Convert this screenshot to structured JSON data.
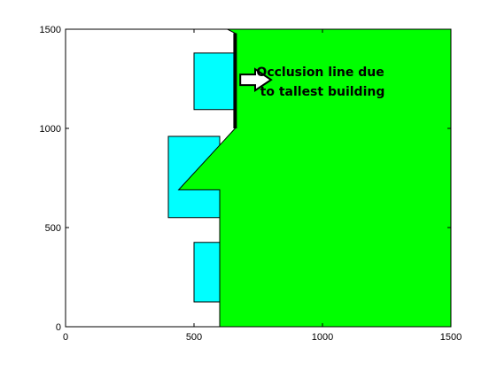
{
  "chart_data": {
    "type": "area",
    "title": "",
    "xlabel": "",
    "ylabel": "",
    "xlim": [
      0,
      1500
    ],
    "ylim": [
      0,
      1500
    ],
    "xticks": [
      0,
      500,
      1000,
      1500
    ],
    "yticks": [
      0,
      500,
      1000,
      1500
    ],
    "xtick_labels": [
      "0",
      "500",
      "1000",
      "1500"
    ],
    "ytick_labels": [
      "0",
      "500",
      "1000",
      "1500"
    ],
    "grid": false,
    "legend": "none",
    "buildings": [
      {
        "x": [
          500,
          600,
          600,
          500
        ],
        "y": [
          125,
          125,
          425,
          425
        ],
        "color": "#00ffff"
      },
      {
        "x": [
          400,
          600,
          600,
          400
        ],
        "y": [
          550,
          550,
          960,
          960
        ],
        "color": "#00ffff"
      },
      {
        "x": [
          500,
          660,
          660,
          500
        ],
        "y": [
          1095,
          1095,
          1380,
          1380
        ],
        "color": "#00ffff"
      }
    ],
    "shadow_region": {
      "x": [
        600,
        1500,
        1500,
        630,
        660,
        660,
        440,
        600,
        600
      ],
      "y": [
        0,
        0,
        1500,
        1500,
        1480,
        1000,
        690,
        690,
        0
      ],
      "color": "#00ff00"
    },
    "occlusion_line": {
      "x": [
        660,
        660
      ],
      "y": [
        1000,
        1480
      ],
      "color": "#000000"
    },
    "annotation": {
      "lines": [
        "Occlusion line due",
        "to tallest building"
      ],
      "arrow_x": [
        680,
        800
      ],
      "arrow_y": 1245,
      "x": 1000,
      "y": 1245
    }
  }
}
